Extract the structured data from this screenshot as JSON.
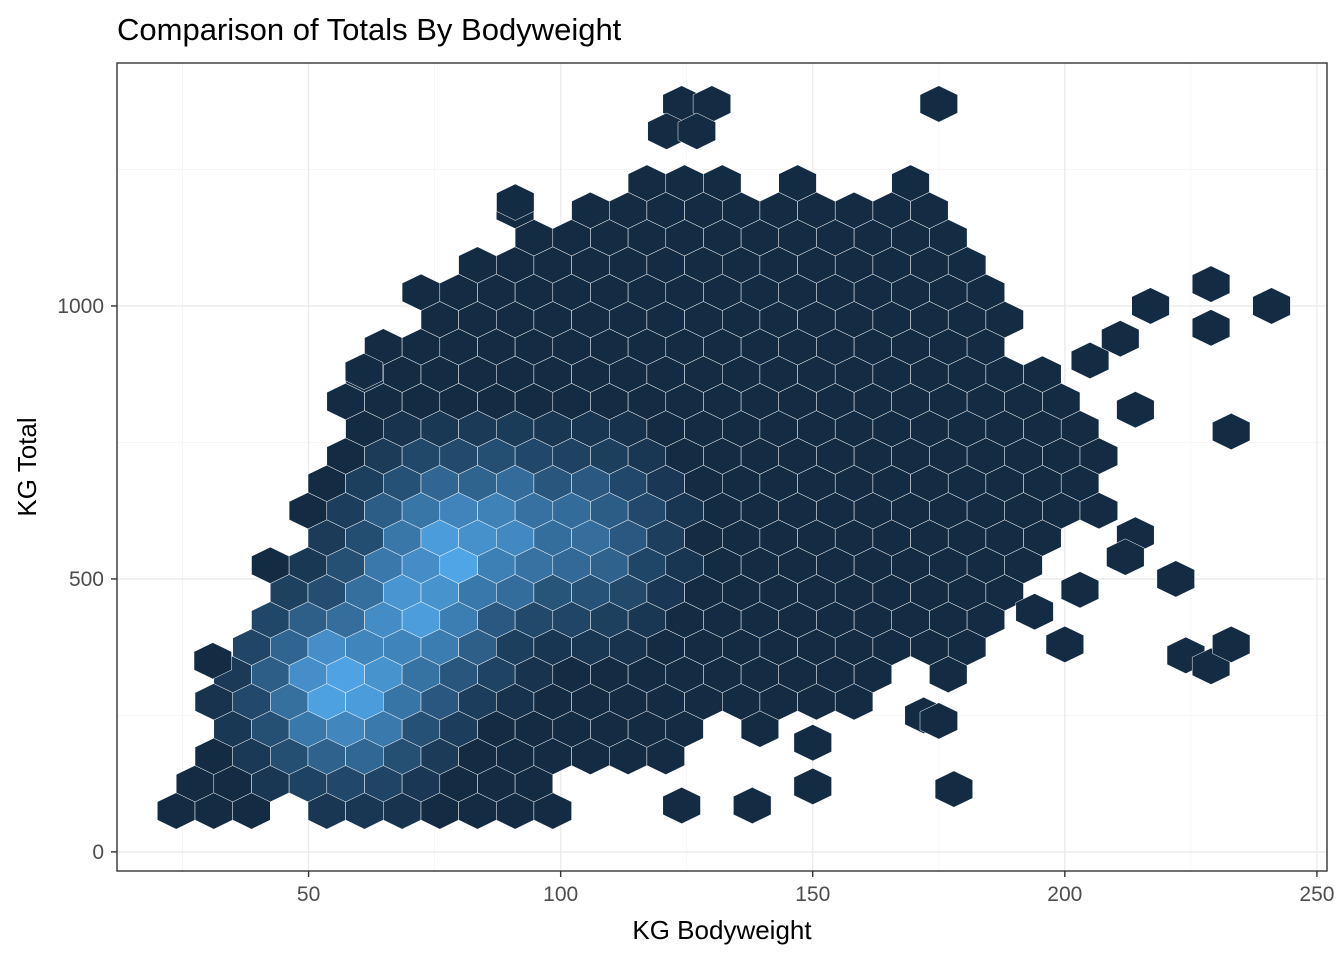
{
  "chart_data": {
    "type": "heatmap",
    "subtype": "hexbin",
    "title": "Comparison of Totals By Bodyweight",
    "xlabel": "KG Bodyweight",
    "ylabel": "KG Total",
    "xlim": [
      12,
      252
    ],
    "ylim": [
      -35,
      1445
    ],
    "x_ticks": [
      50,
      100,
      150,
      200,
      250
    ],
    "y_ticks": [
      0,
      500,
      1000
    ],
    "grid": true,
    "legend": "none",
    "colors": {
      "low": "#132B43",
      "high": "#56B1F7",
      "grid": "#ebebeb",
      "border": "#333333"
    },
    "hex_size": {
      "dx": 7.47,
      "dy": 100.0
    },
    "hotspots": [
      {
        "x": 57.5,
        "y": 305,
        "density": 1.0
      },
      {
        "x": 78,
        "y": 550,
        "density": 0.95
      },
      {
        "x": 72,
        "y": 450,
        "density": 0.92
      },
      {
        "x": 88,
        "y": 575,
        "density": 0.8
      },
      {
        "x": 65,
        "y": 350,
        "density": 0.7
      },
      {
        "x": 103,
        "y": 575,
        "density": 0.55
      }
    ]
  }
}
